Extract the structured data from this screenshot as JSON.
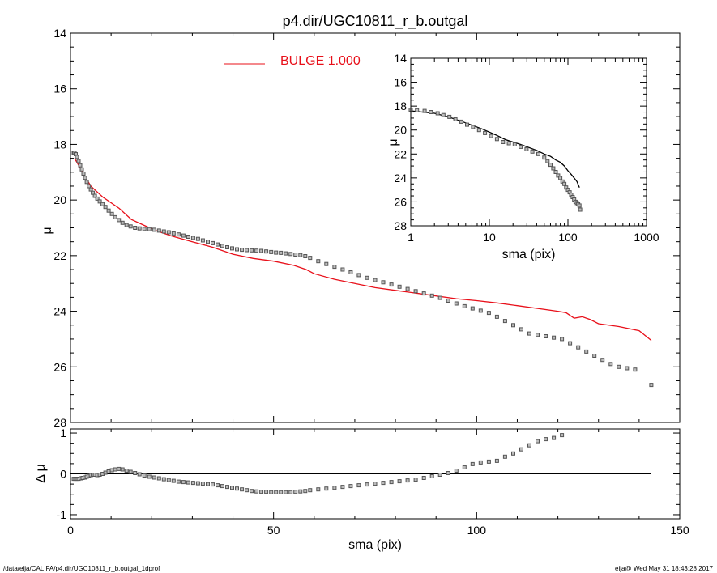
{
  "title": "p4.dir/UGC10811_r_b.outgal",
  "footer": {
    "left": "/data/eija/CALIFA/p4.dir/UGC10811_r_b.outgal_1dprof",
    "right": "eija@  Wed May 31 18:43:28 2017"
  },
  "colors": {
    "model": "#e8101a",
    "data": "#555555",
    "axis": "#000000"
  },
  "chart_data": [
    {
      "id": "main",
      "type": "scatter",
      "xlabel": "",
      "ylabel": "μ",
      "xlim": [
        0,
        150
      ],
      "ylim": [
        28,
        14
      ],
      "y_inverted": true,
      "x_ticks": [
        0,
        50,
        100,
        150
      ],
      "x_tick_labels": [
        "0",
        "50",
        "100",
        "150"
      ],
      "y_ticks": [
        14,
        16,
        18,
        20,
        22,
        24,
        26,
        28
      ],
      "y_tick_labels": [
        "14",
        "16",
        "18",
        "20",
        "22",
        "24",
        "26",
        "28"
      ],
      "legend": {
        "label": "BULGE  1.000",
        "placement": "top-center"
      },
      "series": [
        {
          "name": "BULGE  1.000",
          "kind": "line",
          "x": [
            1,
            3,
            5,
            8,
            12,
            15,
            18,
            21,
            25,
            30,
            35,
            40,
            45,
            50,
            55,
            58,
            60,
            65,
            70,
            75,
            80,
            85,
            90,
            95,
            100,
            105,
            110,
            115,
            120,
            122,
            124,
            126,
            128,
            130,
            135,
            140,
            143
          ],
          "y": [
            18.5,
            19.0,
            19.5,
            19.9,
            20.3,
            20.7,
            20.9,
            21.1,
            21.3,
            21.5,
            21.7,
            21.95,
            22.1,
            22.2,
            22.35,
            22.5,
            22.65,
            22.85,
            23.0,
            23.15,
            23.25,
            23.35,
            23.45,
            23.55,
            23.62,
            23.7,
            23.8,
            23.9,
            24.0,
            24.05,
            24.25,
            24.2,
            24.3,
            24.45,
            24.55,
            24.7,
            25.05
          ]
        },
        {
          "name": "",
          "kind": "points",
          "x": [
            0.8,
            1.0,
            1.3,
            1.6,
            2.0,
            2.4,
            2.8,
            3.2,
            3.6,
            4.0,
            4.5,
            5.0,
            5.5,
            6.0,
            6.6,
            7.2,
            7.9,
            8.6,
            9.4,
            10.2,
            11.0,
            11.9,
            12.8,
            13.8,
            14.8,
            15.9,
            17.0,
            18.2,
            19.4,
            20.6,
            21.8,
            23.0,
            24.2,
            25.4,
            26.6,
            27.8,
            29.0,
            30.2,
            31.4,
            32.6,
            33.8,
            35.0,
            36.2,
            37.4,
            38.6,
            39.8,
            41.0,
            42.2,
            43.4,
            44.6,
            45.8,
            47.0,
            48.2,
            49.4,
            50.6,
            51.8,
            53.0,
            54.2,
            55.4,
            56.6,
            57.8,
            59.0,
            61.0,
            63.0,
            65.0,
            67.0,
            69.0,
            71.0,
            73.0,
            75.0,
            77.0,
            79.0,
            81.0,
            83.0,
            85.0,
            87.0,
            89.0,
            91.0,
            93.0,
            95.0,
            97.0,
            99.0,
            101.0,
            103.0,
            105.0,
            107.0,
            109.0,
            111.0,
            113.0,
            115.0,
            117.0,
            119.0,
            121.0,
            123.0,
            125.0,
            127.0,
            129.0,
            131.0,
            133.0,
            135.0,
            137.0,
            139.0,
            143.0
          ],
          "y": [
            18.3,
            18.3,
            18.35,
            18.45,
            18.6,
            18.75,
            18.9,
            19.05,
            19.2,
            19.35,
            19.5,
            19.62,
            19.74,
            19.85,
            19.95,
            20.05,
            20.15,
            20.25,
            20.38,
            20.5,
            20.62,
            20.72,
            20.82,
            20.9,
            20.95,
            21.0,
            21.02,
            21.04,
            21.05,
            21.07,
            21.1,
            21.13,
            21.16,
            21.2,
            21.24,
            21.28,
            21.32,
            21.36,
            21.4,
            21.45,
            21.5,
            21.55,
            21.6,
            21.65,
            21.7,
            21.74,
            21.77,
            21.79,
            21.8,
            21.81,
            21.82,
            21.83,
            21.85,
            21.87,
            21.89,
            21.9,
            21.92,
            21.94,
            21.96,
            21.98,
            22.02,
            22.08,
            22.2,
            22.3,
            22.4,
            22.5,
            22.6,
            22.7,
            22.8,
            22.88,
            22.96,
            23.04,
            23.12,
            23.2,
            23.28,
            23.36,
            23.44,
            23.52,
            23.62,
            23.72,
            23.82,
            23.9,
            23.98,
            24.06,
            24.2,
            24.35,
            24.5,
            24.65,
            24.8,
            24.85,
            24.9,
            24.95,
            25.0,
            25.15,
            25.3,
            25.45,
            25.6,
            25.75,
            25.9,
            26.0,
            26.05,
            26.1,
            26.65
          ]
        }
      ]
    },
    {
      "id": "inset",
      "type": "scatter",
      "xlabel": "sma (pix)",
      "ylabel": "μ",
      "x_scale": "log",
      "xlim": [
        1,
        1000
      ],
      "ylim": [
        28,
        14
      ],
      "y_inverted": true,
      "x_ticks": [
        1,
        10,
        100,
        1000
      ],
      "x_tick_labels": [
        "1",
        "10",
        "100",
        "1000"
      ],
      "y_ticks": [
        14,
        16,
        18,
        20,
        22,
        24,
        26,
        28
      ],
      "y_tick_labels": [
        "14",
        "16",
        "18",
        "20",
        "22",
        "24",
        "26",
        "28"
      ],
      "series": [
        {
          "name": "",
          "kind": "line",
          "x": [
            1,
            2,
            3,
            5,
            8,
            12,
            16,
            20,
            25,
            30,
            40,
            50,
            60,
            70,
            80,
            90,
            100,
            110,
            120,
            130,
            140
          ],
          "y": [
            18.4,
            18.6,
            18.9,
            19.4,
            19.9,
            20.4,
            20.8,
            21.0,
            21.2,
            21.4,
            21.7,
            22.0,
            22.2,
            22.5,
            22.7,
            23.0,
            23.4,
            23.7,
            24.0,
            24.3,
            24.8
          ]
        },
        {
          "name": "",
          "kind": "points",
          "x": [
            1.0,
            1.2,
            1.5,
            1.8,
            2.2,
            2.6,
            3.1,
            3.7,
            4.4,
            5.2,
            6.2,
            7.4,
            8.8,
            10.5,
            12.5,
            14.9,
            17.7,
            21.0,
            25.0,
            29.7,
            35.3,
            42.0,
            50.0,
            55.0,
            60.0,
            65.0,
            70.0,
            75.0,
            80.0,
            85.0,
            90.0,
            95.0,
            100.0,
            105.0,
            110.0,
            115.0,
            120.0,
            125.0,
            130.0,
            135.0,
            140.0,
            143.0
          ],
          "y": [
            18.3,
            18.35,
            18.4,
            18.5,
            18.6,
            18.75,
            18.9,
            19.1,
            19.3,
            19.55,
            19.75,
            20.0,
            20.25,
            20.5,
            20.75,
            21.0,
            21.1,
            21.2,
            21.4,
            21.6,
            21.8,
            22.0,
            22.3,
            22.6,
            22.9,
            23.2,
            23.5,
            23.8,
            24.0,
            24.3,
            24.5,
            24.8,
            25.0,
            25.2,
            25.4,
            25.6,
            25.8,
            26.0,
            26.1,
            26.2,
            26.3,
            26.65
          ]
        }
      ]
    },
    {
      "id": "residual",
      "type": "scatter",
      "xlabel": "sma (pix)",
      "ylabel": "Δ μ",
      "xlim": [
        0,
        150
      ],
      "ylim": [
        -1.1,
        1.1
      ],
      "x_ticks": [
        0,
        50,
        100,
        150
      ],
      "x_tick_labels": [
        "0",
        "50",
        "100",
        "150"
      ],
      "y_ticks": [
        -1,
        0,
        1
      ],
      "y_tick_labels": [
        "-1",
        "0",
        "1"
      ],
      "zero_line_x": [
        0,
        143
      ],
      "series": [
        {
          "name": "",
          "kind": "points",
          "x": [
            0.8,
            1.2,
            1.6,
            2.0,
            2.5,
            3.0,
            3.5,
            4.0,
            4.5,
            5.0,
            5.5,
            6.0,
            6.6,
            7.2,
            7.9,
            8.6,
            9.4,
            10.2,
            11.0,
            11.9,
            12.8,
            13.8,
            14.8,
            15.9,
            17.0,
            18.2,
            19.4,
            20.6,
            21.8,
            23.0,
            24.2,
            25.4,
            26.6,
            27.8,
            29.0,
            30.2,
            31.4,
            32.6,
            33.8,
            35.0,
            36.2,
            37.4,
            38.6,
            39.8,
            41.0,
            42.2,
            43.4,
            44.6,
            45.8,
            47.0,
            48.2,
            49.4,
            50.6,
            51.8,
            53.0,
            54.2,
            55.4,
            56.6,
            57.8,
            59.0,
            61.0,
            63.0,
            65.0,
            67.0,
            69.0,
            71.0,
            73.0,
            75.0,
            77.0,
            79.0,
            81.0,
            83.0,
            85.0,
            87.0,
            89.0,
            91.0,
            93.0,
            95.0,
            97.0,
            99.0,
            101.0,
            103.0,
            105.0,
            107.0,
            109.0,
            111.0,
            113.0,
            115.0,
            117.0,
            119.0,
            121.0
          ],
          "y": [
            -0.12,
            -0.12,
            -0.12,
            -0.12,
            -0.11,
            -0.1,
            -0.09,
            -0.07,
            -0.05,
            -0.03,
            -0.02,
            -0.02,
            -0.03,
            -0.02,
            0.0,
            0.03,
            0.06,
            0.09,
            0.11,
            0.12,
            0.11,
            0.08,
            0.05,
            0.02,
            -0.01,
            -0.04,
            -0.07,
            -0.09,
            -0.11,
            -0.13,
            -0.15,
            -0.17,
            -0.19,
            -0.2,
            -0.21,
            -0.22,
            -0.23,
            -0.24,
            -0.25,
            -0.26,
            -0.28,
            -0.3,
            -0.32,
            -0.34,
            -0.36,
            -0.38,
            -0.4,
            -0.42,
            -0.43,
            -0.44,
            -0.44,
            -0.45,
            -0.45,
            -0.45,
            -0.45,
            -0.45,
            -0.44,
            -0.43,
            -0.42,
            -0.4,
            -0.38,
            -0.36,
            -0.34,
            -0.32,
            -0.3,
            -0.28,
            -0.26,
            -0.24,
            -0.22,
            -0.2,
            -0.18,
            -0.16,
            -0.14,
            -0.1,
            -0.06,
            -0.02,
            0.02,
            0.08,
            0.16,
            0.24,
            0.28,
            0.3,
            0.32,
            0.42,
            0.5,
            0.6,
            0.7,
            0.8,
            0.85,
            0.88,
            0.95
          ]
        }
      ]
    }
  ]
}
